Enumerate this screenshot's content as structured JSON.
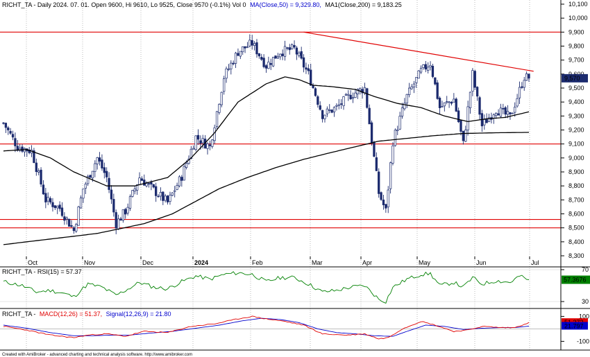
{
  "header": {
    "main_title": "RICHT_TA - Daily 2024. 07. 01. Open 9600, Hi 9610, Lo 9525, Close 9570 (-0.1%) Vol 0",
    "ma50_label": "MA(Close,50) = 9,329.80,",
    "ma200_label": "MA1(Close,200) = 9,183.25",
    "rsi_title": "RICHT_TA - RSI(15) = 57.37",
    "macd_prefix": "RICHT_TA -",
    "macd_label": "MACD(12,26) = 51.37,",
    "signal_label": "Signal(12,26,9) = 21.80",
    "footer": "Created with AmiBroker - advanced charting and technical analysis software. http://www.amibroker.com"
  },
  "colors": {
    "candle": "#1c2b6e",
    "ma": "#000000",
    "levels": "#e00000",
    "rsi": "#008000",
    "macd": "#e00000",
    "signal": "#0000cc",
    "last_price_bg": "#1c2b6e",
    "rsi_badge_bg": "#008000",
    "macd_badge_bg": "#e00000",
    "signal_badge_bg": "#0000cc"
  },
  "chart_data": [
    {
      "type": "candlestick",
      "ylim": [
        8300,
        10100
      ],
      "y_ticks": [
        8300,
        8400,
        8500,
        8600,
        8700,
        8800,
        8900,
        9000,
        9100,
        9200,
        9300,
        9400,
        9500,
        9600,
        9700,
        9800,
        9900,
        10000,
        10100
      ],
      "y_tick_labels": [
        "8,300",
        "8,400",
        "8,500",
        "8,600",
        "8,700",
        "8,800",
        "8,900",
        "9,000",
        "9,100",
        "9,200",
        "9,300",
        "9,400",
        "9,500",
        "9,600",
        "9,700",
        "9,800",
        "9,900",
        "10,000",
        "10,100"
      ],
      "x_months": [
        "Oct",
        "Nov",
        "Dec",
        "2024",
        "Feb",
        "Mar",
        "Apr",
        "May",
        "Jun",
        "Jul"
      ],
      "ohlc_bars": 225,
      "price_anchors": [
        [
          0,
          9250
        ],
        [
          6,
          9080
        ],
        [
          12,
          9050
        ],
        [
          18,
          8700
        ],
        [
          24,
          8640
        ],
        [
          30,
          8480
        ],
        [
          34,
          8780
        ],
        [
          40,
          9000
        ],
        [
          44,
          8860
        ],
        [
          48,
          8530
        ],
        [
          52,
          8620
        ],
        [
          58,
          8860
        ],
        [
          64,
          8770
        ],
        [
          70,
          8680
        ],
        [
          76,
          8870
        ],
        [
          82,
          9150
        ],
        [
          88,
          9080
        ],
        [
          94,
          9580
        ],
        [
          100,
          9760
        ],
        [
          106,
          9820
        ],
        [
          112,
          9660
        ],
        [
          118,
          9760
        ],
        [
          124,
          9780
        ],
        [
          130,
          9600
        ],
        [
          136,
          9310
        ],
        [
          142,
          9360
        ],
        [
          148,
          9450
        ],
        [
          154,
          9500
        ],
        [
          160,
          8750
        ],
        [
          163,
          8620
        ],
        [
          166,
          9120
        ],
        [
          172,
          9440
        ],
        [
          178,
          9620
        ],
        [
          182,
          9680
        ],
        [
          186,
          9360
        ],
        [
          192,
          9420
        ],
        [
          196,
          9100
        ],
        [
          200,
          9600
        ],
        [
          204,
          9230
        ],
        [
          210,
          9350
        ],
        [
          216,
          9290
        ],
        [
          222,
          9580
        ],
        [
          224,
          9570
        ]
      ],
      "last_price": 9570,
      "last_price_label": "9,570",
      "ma50_anchors": [
        [
          0,
          9050
        ],
        [
          10,
          9060
        ],
        [
          20,
          9000
        ],
        [
          30,
          8900
        ],
        [
          44,
          8800
        ],
        [
          56,
          8800
        ],
        [
          70,
          8860
        ],
        [
          80,
          9000
        ],
        [
          90,
          9180
        ],
        [
          100,
          9400
        ],
        [
          112,
          9530
        ],
        [
          120,
          9580
        ],
        [
          126,
          9560
        ],
        [
          132,
          9520
        ],
        [
          140,
          9510
        ],
        [
          150,
          9490
        ],
        [
          158,
          9440
        ],
        [
          168,
          9390
        ],
        [
          178,
          9360
        ],
        [
          188,
          9300
        ],
        [
          198,
          9260
        ],
        [
          206,
          9280
        ],
        [
          214,
          9290
        ],
        [
          224,
          9330
        ]
      ],
      "ma200_anchors": [
        [
          0,
          8380
        ],
        [
          20,
          8420
        ],
        [
          40,
          8460
        ],
        [
          60,
          8530
        ],
        [
          72,
          8600
        ],
        [
          82,
          8690
        ],
        [
          92,
          8780
        ],
        [
          104,
          8860
        ],
        [
          116,
          8930
        ],
        [
          128,
          8990
        ],
        [
          140,
          9040
        ],
        [
          150,
          9080
        ],
        [
          160,
          9120
        ],
        [
          172,
          9140
        ],
        [
          184,
          9160
        ],
        [
          196,
          9175
        ],
        [
          210,
          9180
        ],
        [
          224,
          9183
        ]
      ],
      "horizontal_levels": [
        9900,
        9100,
        8560,
        8500
      ],
      "trendline": {
        "from": [
          128,
          9900
        ],
        "to": [
          226,
          9620
        ]
      }
    },
    {
      "type": "line",
      "name": "RSI(15)",
      "ylim": [
        30,
        70
      ],
      "y_ticks": [
        30,
        70
      ],
      "y_tick_labels": [
        "30",
        "70"
      ],
      "last_value": 57.37,
      "last_value_label": "57.3676",
      "anchors": [
        [
          0,
          55
        ],
        [
          8,
          50
        ],
        [
          14,
          42
        ],
        [
          20,
          44
        ],
        [
          26,
          40
        ],
        [
          30,
          36
        ],
        [
          36,
          52
        ],
        [
          42,
          48
        ],
        [
          48,
          38
        ],
        [
          52,
          44
        ],
        [
          58,
          54
        ],
        [
          64,
          48
        ],
        [
          70,
          46
        ],
        [
          76,
          55
        ],
        [
          82,
          62
        ],
        [
          88,
          58
        ],
        [
          94,
          64
        ],
        [
          100,
          66
        ],
        [
          106,
          64
        ],
        [
          112,
          55
        ],
        [
          118,
          60
        ],
        [
          124,
          60
        ],
        [
          130,
          52
        ],
        [
          136,
          42
        ],
        [
          142,
          44
        ],
        [
          148,
          48
        ],
        [
          154,
          50
        ],
        [
          160,
          33
        ],
        [
          163,
          30
        ],
        [
          166,
          48
        ],
        [
          172,
          58
        ],
        [
          178,
          64
        ],
        [
          182,
          65
        ],
        [
          186,
          50
        ],
        [
          192,
          54
        ],
        [
          196,
          48
        ],
        [
          200,
          60
        ],
        [
          204,
          52
        ],
        [
          210,
          56
        ],
        [
          216,
          54
        ],
        [
          220,
          62
        ],
        [
          224,
          57
        ]
      ]
    },
    {
      "type": "line",
      "name": "MACD(12,26)",
      "ylim": [
        -120,
        130
      ],
      "y_ticks": [
        100,
        -100
      ],
      "y_tick_labels": [
        "100",
        "-100"
      ],
      "last_value": 51.37,
      "last_value_label": "51.372",
      "signal_last_value": 21.8,
      "signal_last_value_label": "21.797",
      "macd_anchors": [
        [
          0,
          20
        ],
        [
          10,
          -10
        ],
        [
          20,
          -50
        ],
        [
          30,
          -70
        ],
        [
          36,
          -50
        ],
        [
          44,
          -40
        ],
        [
          52,
          -60
        ],
        [
          60,
          -20
        ],
        [
          70,
          -30
        ],
        [
          80,
          20
        ],
        [
          90,
          40
        ],
        [
          100,
          80
        ],
        [
          106,
          100
        ],
        [
          112,
          80
        ],
        [
          120,
          60
        ],
        [
          128,
          30
        ],
        [
          136,
          -40
        ],
        [
          146,
          -50
        ],
        [
          154,
          -40
        ],
        [
          160,
          -80
        ],
        [
          164,
          -70
        ],
        [
          170,
          0
        ],
        [
          178,
          60
        ],
        [
          184,
          30
        ],
        [
          192,
          -20
        ],
        [
          198,
          -10
        ],
        [
          204,
          20
        ],
        [
          212,
          10
        ],
        [
          218,
          10
        ],
        [
          224,
          51
        ]
      ],
      "signal_anchors": [
        [
          0,
          30
        ],
        [
          10,
          5
        ],
        [
          20,
          -30
        ],
        [
          30,
          -55
        ],
        [
          38,
          -55
        ],
        [
          46,
          -50
        ],
        [
          54,
          -50
        ],
        [
          62,
          -35
        ],
        [
          72,
          -20
        ],
        [
          82,
          5
        ],
        [
          92,
          30
        ],
        [
          102,
          65
        ],
        [
          110,
          85
        ],
        [
          118,
          75
        ],
        [
          126,
          50
        ],
        [
          134,
          0
        ],
        [
          142,
          -30
        ],
        [
          150,
          -40
        ],
        [
          158,
          -55
        ],
        [
          166,
          -60
        ],
        [
          172,
          -20
        ],
        [
          180,
          30
        ],
        [
          188,
          20
        ],
        [
          196,
          -5
        ],
        [
          204,
          5
        ],
        [
          212,
          10
        ],
        [
          218,
          10
        ],
        [
          224,
          22
        ]
      ]
    }
  ]
}
